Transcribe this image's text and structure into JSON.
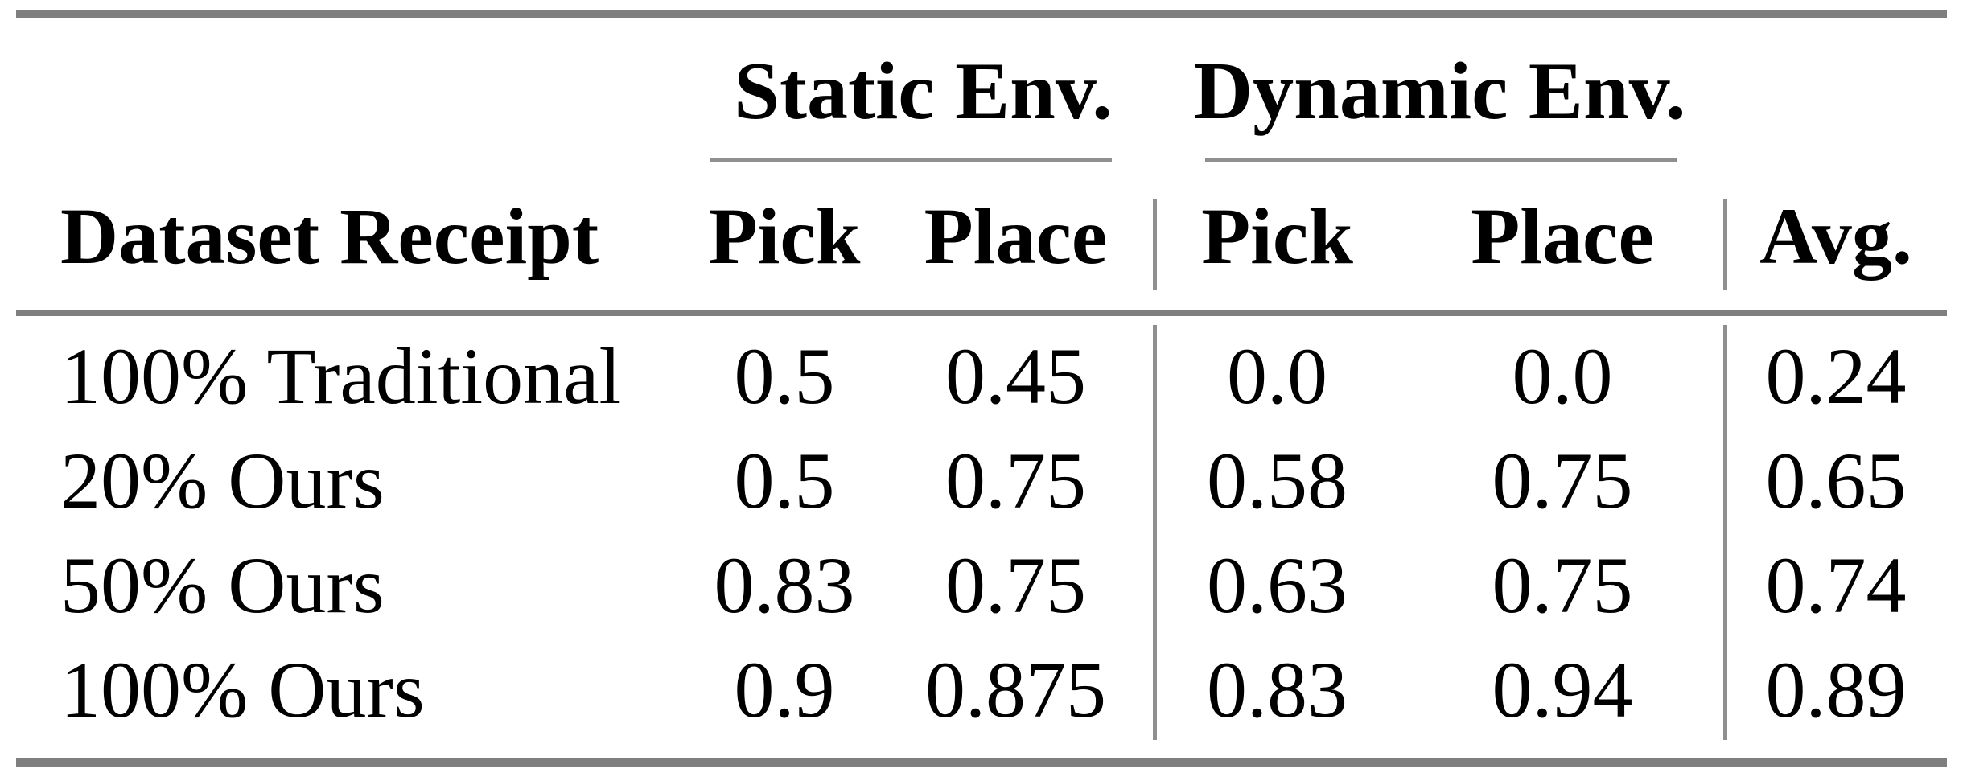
{
  "table": {
    "group_header": {
      "static": "Static Env.",
      "dynamic": "Dynamic Env."
    },
    "columns": {
      "dataset": "Dataset Receipt",
      "static_pick": "Pick",
      "static_place": "Place",
      "dynamic_pick": "Pick",
      "dynamic_place": "Place",
      "avg": "Avg."
    },
    "rows": [
      [
        "100% Traditional",
        "0.5",
        "0.45",
        "0.0",
        "0.0",
        "0.24"
      ],
      [
        "20% Ours",
        "0.5",
        "0.75",
        "0.58",
        "0.75",
        "0.65"
      ],
      [
        "50% Ours",
        "0.83",
        "0.75",
        "0.63",
        "0.75",
        "0.74"
      ],
      [
        "100% Ours",
        "0.9",
        "0.875",
        "0.83",
        "0.94",
        "0.89"
      ]
    ]
  },
  "colors": {
    "thick_rule": "#7f7f7f",
    "thin_rule": "#8f8f8f",
    "text": "#000000",
    "background": "#ffffff"
  }
}
